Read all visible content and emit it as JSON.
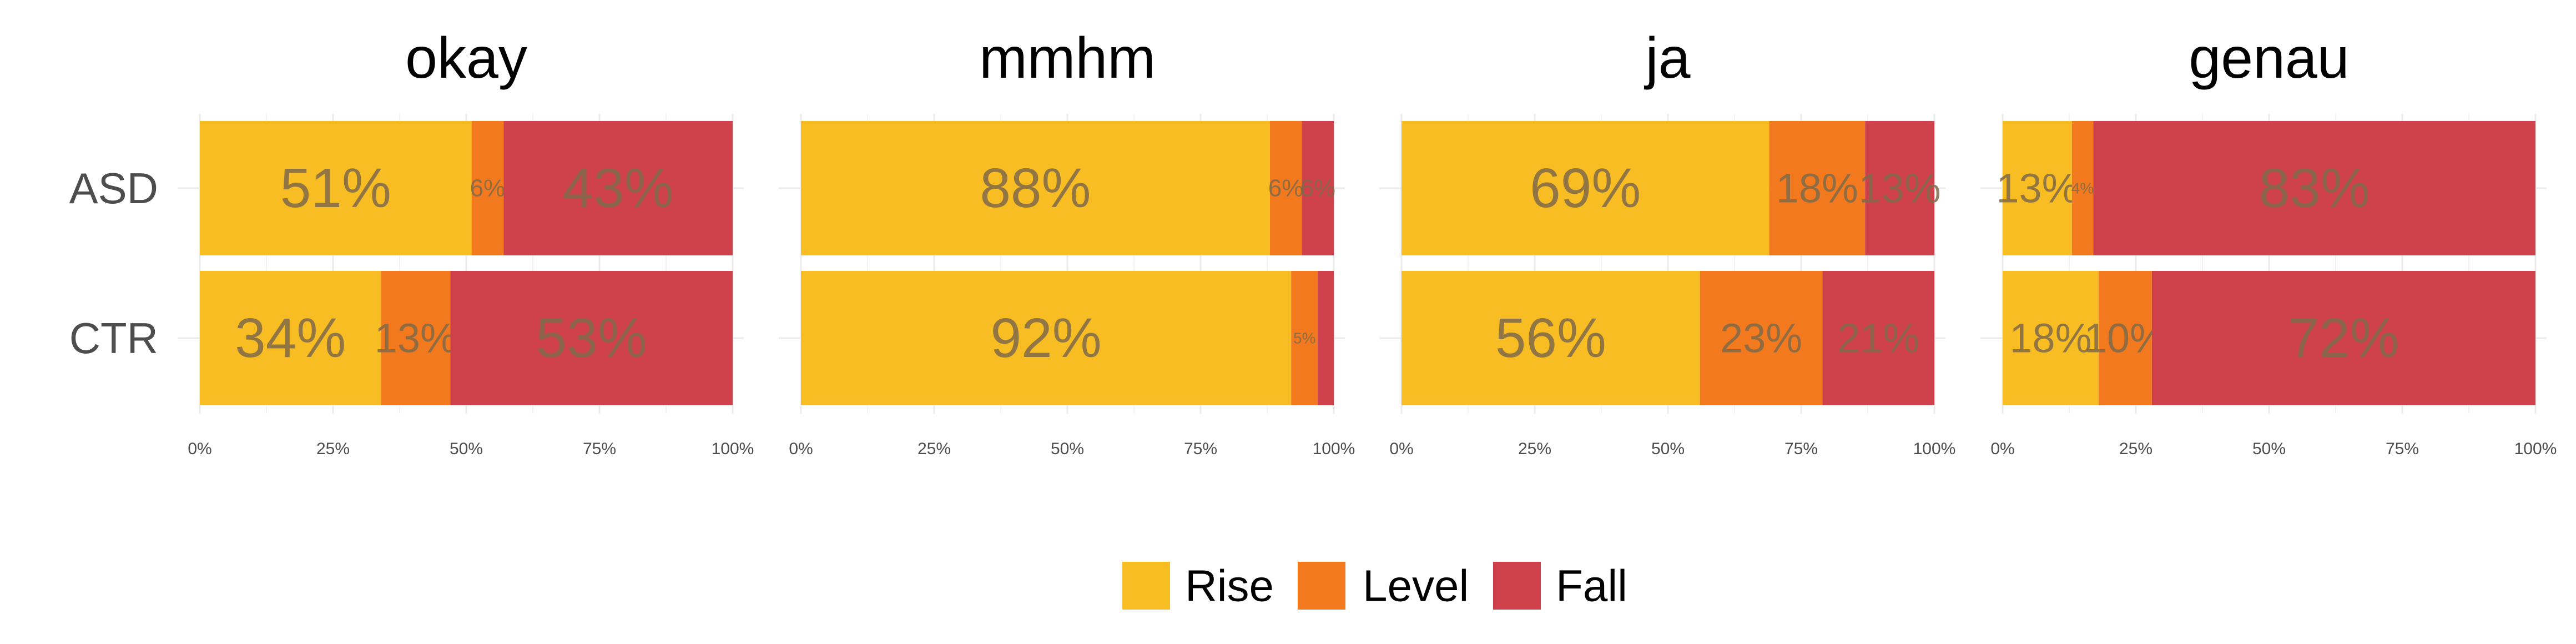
{
  "chart_data": {
    "type": "bar",
    "orientation": "horizontal",
    "stacked": true,
    "normalized": true,
    "xlim": [
      0,
      100
    ],
    "x_ticks": [
      "0%",
      "25%",
      "50%",
      "75%",
      "100%"
    ],
    "grid": true,
    "legend_position": "bottom",
    "groups": [
      "ASD",
      "CTR"
    ],
    "series_names": [
      "Rise",
      "Level",
      "Fall"
    ],
    "colors": {
      "Rise": "#F9BD24",
      "Level": "#F2791E",
      "Fall": "#CF414A"
    },
    "panels": [
      {
        "title": "okay",
        "rows": [
          {
            "group": "ASD",
            "values": [
              51,
              6,
              43
            ],
            "labels": [
              "51%",
              "6%",
              "43%"
            ]
          },
          {
            "group": "CTR",
            "values": [
              34,
              13,
              53
            ],
            "labels": [
              "34%",
              "13%",
              "53%"
            ]
          }
        ]
      },
      {
        "title": "mmhm",
        "rows": [
          {
            "group": "ASD",
            "values": [
              88,
              6,
              6
            ],
            "labels": [
              "88%",
              "6%",
              "6%"
            ]
          },
          {
            "group": "CTR",
            "values": [
              92,
              5,
              3
            ],
            "labels": [
              "92%",
              "5%",
              ""
            ]
          }
        ]
      },
      {
        "title": "ja",
        "rows": [
          {
            "group": "ASD",
            "values": [
              69,
              18,
              13
            ],
            "labels": [
              "69%",
              "18%",
              "13%"
            ]
          },
          {
            "group": "CTR",
            "values": [
              56,
              23,
              21
            ],
            "labels": [
              "56%",
              "23%",
              "21%"
            ]
          }
        ]
      },
      {
        "title": "genau",
        "rows": [
          {
            "group": "ASD",
            "values": [
              13,
              4,
              83
            ],
            "labels": [
              "13%",
              "4%",
              "83%"
            ]
          },
          {
            "group": "CTR",
            "values": [
              18,
              10,
              72
            ],
            "labels": [
              "18%",
              "10%",
              "72%"
            ]
          }
        ]
      }
    ]
  }
}
